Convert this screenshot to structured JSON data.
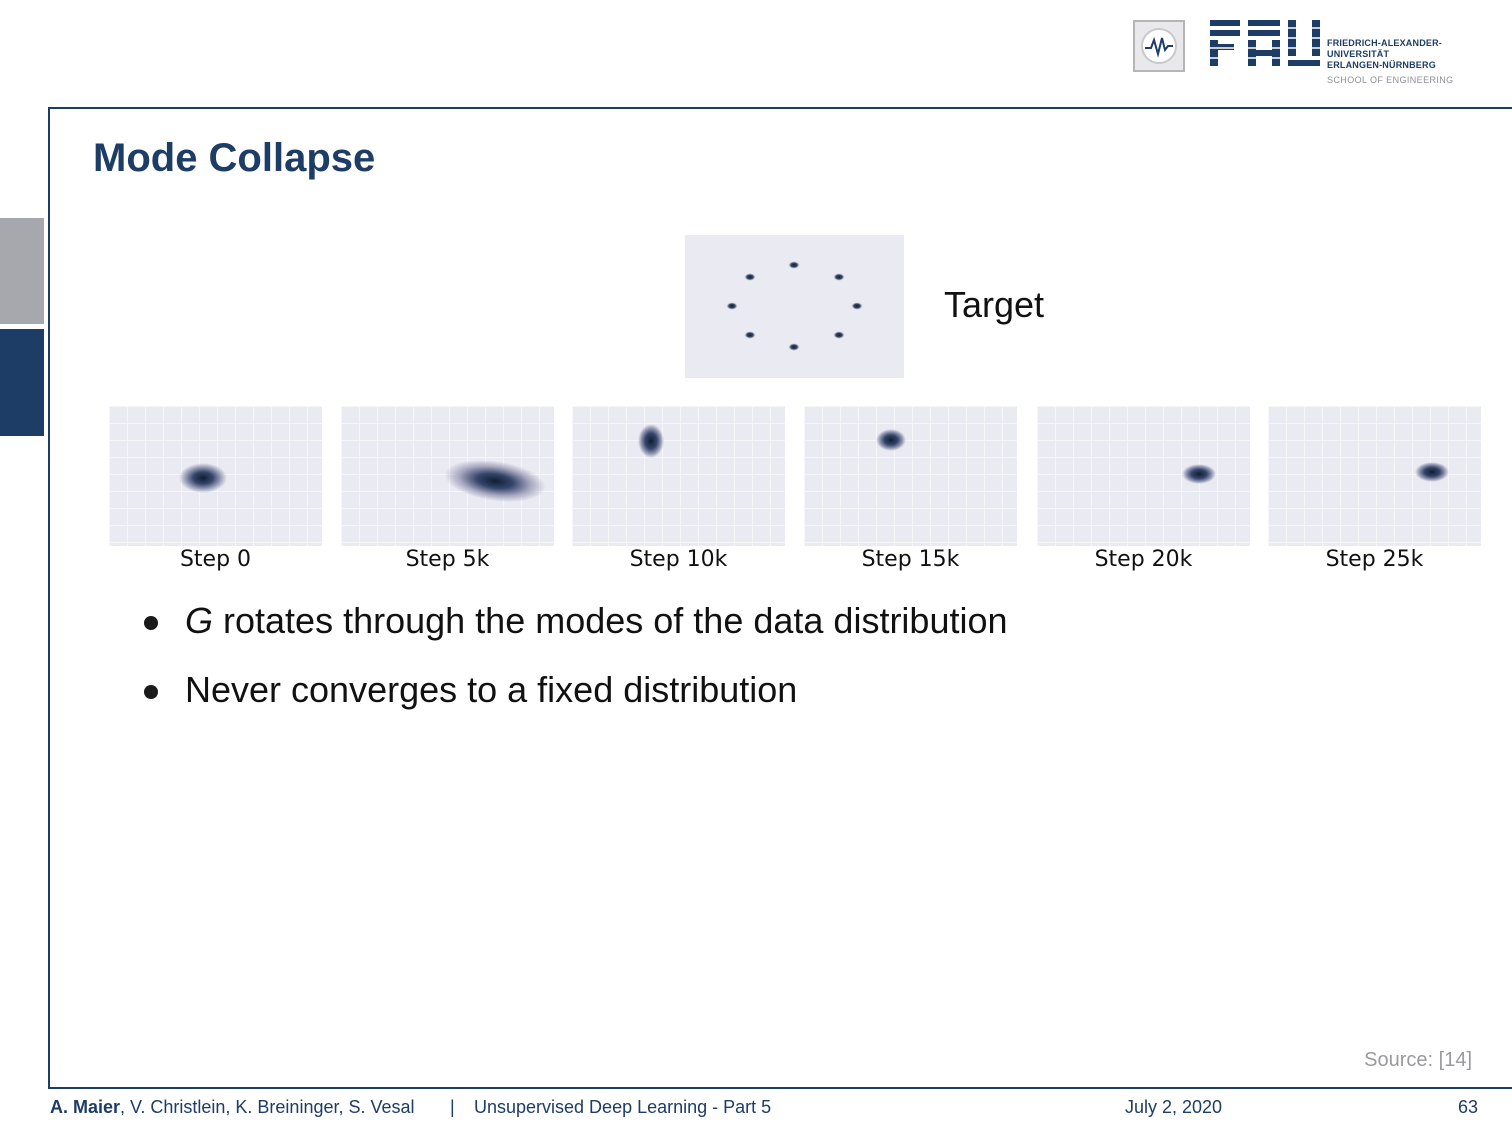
{
  "header": {
    "university_lines": [
      "FRIEDRICH-ALEXANDER-",
      "UNIVERSITÄT",
      "ERLANGEN-NÜRNBERG"
    ],
    "school": "SCHOOL OF ENGINEERING",
    "brand_color": "#1d3c66"
  },
  "slide": {
    "title": "Mode Collapse",
    "target_label": "Target",
    "steps": [
      "Step 0",
      "Step 5k",
      "Step 10k",
      "Step 15k",
      "Step 20k",
      "Step 25k"
    ],
    "bullet_1_var": "G",
    "bullet_1_rest": " rotates through the modes of the data distribution",
    "bullet_2": "Never converges to a fixed distribution",
    "source": "Source: [14]"
  },
  "footer": {
    "author_bold": "A. Maier",
    "authors_rest": ", V. Christlein, K. Breininger, S. Vesal",
    "separator": "|",
    "course": "Unsupervised Deep Learning - Part 5",
    "date": "July 2, 2020",
    "page": "63"
  }
}
